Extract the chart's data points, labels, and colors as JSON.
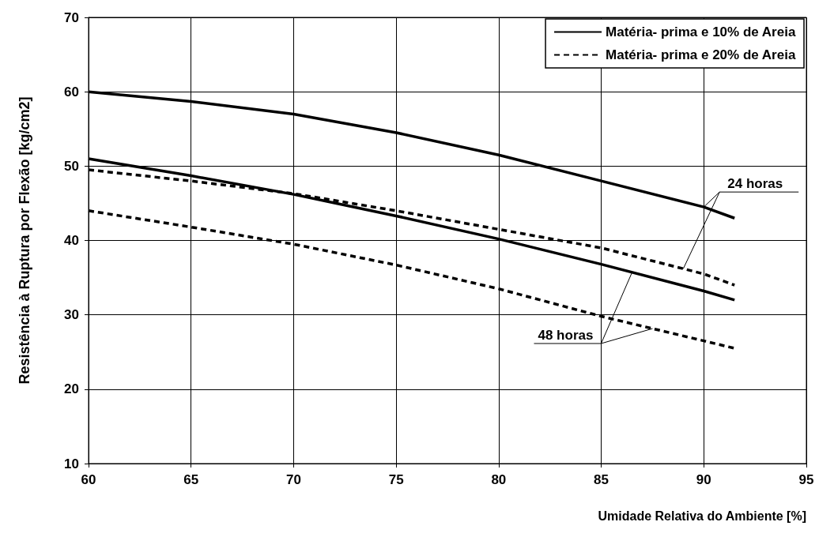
{
  "chart_data": {
    "type": "line",
    "xlabel": "Umidade Relativa do Ambiente [%]",
    "ylabel": "Resistência à Ruptura por Flexão [kg/cm2]",
    "x": [
      60,
      65,
      70,
      75,
      80,
      85,
      90,
      91.5
    ],
    "series": [
      {
        "name": "Matéria- prima e 10% de Areia",
        "color": "#000000",
        "line_style": "solid",
        "values": [
          60,
          58.7,
          57,
          54.5,
          51.5,
          48,
          44.5,
          43
        ]
      },
      {
        "color": "#000000",
        "line_style": "solid",
        "values": [
          51,
          48.7,
          46.2,
          43.3,
          40.2,
          36.8,
          33.2,
          32
        ]
      },
      {
        "name": "Matéria- prima e 20% de Areia",
        "color": "#000000",
        "line_style": "dashed",
        "values": [
          49.5,
          48,
          46.3,
          44,
          41.5,
          39,
          35.5,
          34
        ]
      },
      {
        "color": "#000000",
        "line_style": "dashed",
        "values": [
          44,
          41.8,
          39.5,
          36.7,
          33.5,
          29.8,
          26.5,
          25.5
        ]
      }
    ],
    "xlim": [
      60,
      95
    ],
    "xticks": [
      60,
      65,
      70,
      75,
      80,
      85,
      90,
      95
    ],
    "ylim": [
      10,
      70
    ],
    "yticks": [
      10,
      20,
      30,
      40,
      50,
      60,
      70
    ],
    "grid": true,
    "legend": "top right",
    "marker": "none",
    "annotations": [
      {
        "text": "24 horas",
        "x": 90,
        "y": 44.5
      },
      {
        "text": "48 horas",
        "x": 86.5,
        "y": 35.7
      }
    ]
  }
}
